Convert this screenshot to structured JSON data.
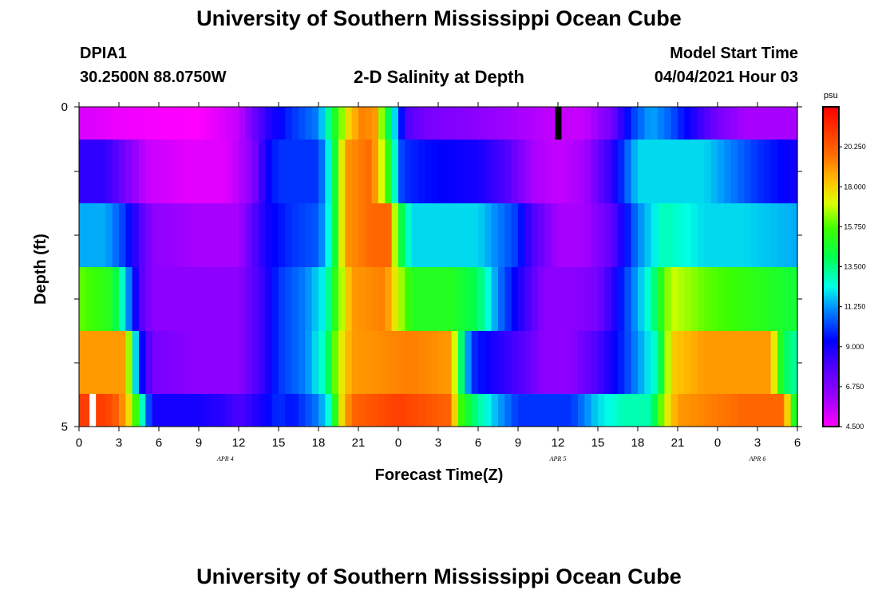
{
  "title_top": "University of Southern Mississippi Ocean Cube",
  "title_bottom": "University of Southern Mississippi Ocean Cube",
  "station": "DPIA1",
  "coords": "30.2500N  88.0750W",
  "chart_title": "2-D Salinity at Depth",
  "model_label": "Model Start Time",
  "model_time": "04/04/2021 Hour 03",
  "chart_data": {
    "type": "heatmap",
    "title": "2-D Salinity at Depth",
    "xlabel": "Forecast Time(Z)",
    "ylabel": "Depth (ft)",
    "x_ticks": [
      "0",
      "3",
      "6",
      "9",
      "12",
      "15",
      "18",
      "21",
      "0",
      "3",
      "6",
      "9",
      "12",
      "15",
      "18",
      "21",
      "0",
      "3",
      "6"
    ],
    "x_range_hours": [
      0,
      54
    ],
    "y_ticks": [
      "0",
      "5"
    ],
    "y_range": [
      0,
      5
    ],
    "date_labels": [
      {
        "text": "APR 4",
        "hour": 11
      },
      {
        "text": "APR 5",
        "hour": 36
      },
      {
        "text": "APR 6",
        "hour": 51
      }
    ],
    "colorbar": {
      "unit": "psu",
      "ticks": [
        "4.500",
        "6.750",
        "9.000",
        "11.250",
        "13.500",
        "15.750",
        "18.000",
        "20.250"
      ],
      "range": [
        4.5,
        22.5
      ]
    },
    "series": [
      {
        "depth_band": "0-0.5",
        "keyframes": [
          [
            0,
            5.2
          ],
          [
            3,
            4.8
          ],
          [
            6,
            4.6
          ],
          [
            9,
            4.5
          ],
          [
            12,
            5.5
          ],
          [
            14,
            8.5
          ],
          [
            16,
            10
          ],
          [
            18,
            11
          ],
          [
            19.3,
            15
          ],
          [
            20.3,
            18
          ],
          [
            21.3,
            19.5
          ],
          [
            22.3,
            19
          ],
          [
            23,
            15
          ],
          [
            24,
            11
          ],
          [
            24.5,
            8
          ],
          [
            26,
            7
          ],
          [
            30,
            6.5
          ],
          [
            33,
            6
          ],
          [
            36,
            5.5
          ],
          [
            38,
            5.5
          ],
          [
            40,
            7
          ],
          [
            41.5,
            10
          ],
          [
            43,
            11.5
          ],
          [
            44.5,
            10.5
          ],
          [
            46,
            9
          ],
          [
            48,
            7
          ],
          [
            50,
            6
          ],
          [
            54,
            6
          ]
        ]
      },
      {
        "depth_band": "0.5-1.5",
        "keyframes": [
          [
            0,
            8.5
          ],
          [
            2,
            8.5
          ],
          [
            4,
            6.5
          ],
          [
            5,
            5.5
          ],
          [
            8,
            5
          ],
          [
            11,
            5
          ],
          [
            13,
            6.5
          ],
          [
            14,
            9
          ],
          [
            15,
            10
          ],
          [
            18,
            10
          ],
          [
            19,
            13
          ],
          [
            20,
            19
          ],
          [
            22,
            20
          ],
          [
            23.3,
            15
          ],
          [
            24.3,
            10
          ],
          [
            26,
            9.5
          ],
          [
            30,
            9
          ],
          [
            32,
            8
          ],
          [
            34,
            6
          ],
          [
            36,
            5.5
          ],
          [
            38,
            6
          ],
          [
            40,
            8.5
          ],
          [
            42,
            12
          ],
          [
            45,
            12
          ],
          [
            47,
            12
          ],
          [
            49,
            11
          ],
          [
            51,
            10
          ],
          [
            54,
            9
          ]
        ]
      },
      {
        "depth_band": "1.5-2.5",
        "keyframes": [
          [
            0,
            11.5
          ],
          [
            2,
            11.5
          ],
          [
            3.5,
            10
          ],
          [
            4.5,
            8
          ],
          [
            5.5,
            6.5
          ],
          [
            9,
            6
          ],
          [
            12,
            6
          ],
          [
            14,
            9
          ],
          [
            16,
            10
          ],
          [
            18,
            10.5
          ],
          [
            19,
            13
          ],
          [
            20,
            19
          ],
          [
            22,
            20
          ],
          [
            23.3,
            20
          ],
          [
            24,
            15
          ],
          [
            25,
            12
          ],
          [
            30,
            12
          ],
          [
            33,
            10
          ],
          [
            34,
            8
          ],
          [
            36,
            6
          ],
          [
            38,
            6
          ],
          [
            40,
            7.5
          ],
          [
            42,
            11
          ],
          [
            44,
            13
          ],
          [
            47,
            12
          ],
          [
            50,
            12
          ],
          [
            54,
            11.5
          ]
        ]
      },
      {
        "depth_band": "2.5-3.5",
        "keyframes": [
          [
            0,
            16
          ],
          [
            2.5,
            15
          ],
          [
            3.5,
            12
          ],
          [
            4.5,
            8
          ],
          [
            5.5,
            6.5
          ],
          [
            9,
            6.5
          ],
          [
            12,
            6.5
          ],
          [
            13.5,
            8
          ],
          [
            15,
            10
          ],
          [
            17,
            11
          ],
          [
            18.5,
            12.5
          ],
          [
            19.5,
            16
          ],
          [
            20.5,
            19
          ],
          [
            23,
            19.5
          ],
          [
            24,
            17
          ],
          [
            25,
            15
          ],
          [
            28,
            15
          ],
          [
            30,
            14
          ],
          [
            31.5,
            11
          ],
          [
            33,
            9
          ],
          [
            35,
            6.5
          ],
          [
            37,
            6.5
          ],
          [
            39,
            7
          ],
          [
            41,
            10
          ],
          [
            43,
            13
          ],
          [
            44.5,
            17
          ],
          [
            47,
            16
          ],
          [
            54,
            14.5
          ]
        ]
      },
      {
        "depth_band": "3.5-4.5",
        "keyframes": [
          [
            0,
            19
          ],
          [
            3.5,
            19
          ],
          [
            4,
            14
          ],
          [
            4.5,
            10
          ],
          [
            5.5,
            7
          ],
          [
            9,
            6.5
          ],
          [
            12,
            6.5
          ],
          [
            13.5,
            8
          ],
          [
            15,
            10
          ],
          [
            17,
            11
          ],
          [
            18.5,
            13
          ],
          [
            19.5,
            17
          ],
          [
            20.5,
            19
          ],
          [
            25,
            19.5
          ],
          [
            28,
            19
          ],
          [
            28.5,
            15
          ],
          [
            29.5,
            10
          ],
          [
            31,
            9
          ],
          [
            33,
            8
          ],
          [
            35,
            6.5
          ],
          [
            37,
            6.5
          ],
          [
            39,
            8
          ],
          [
            41,
            10
          ],
          [
            43.5,
            13
          ],
          [
            44.5,
            18
          ],
          [
            47,
            19
          ],
          [
            52,
            19
          ],
          [
            52.5,
            16
          ],
          [
            53,
            14
          ],
          [
            54,
            13
          ]
        ]
      },
      {
        "depth_band": "4.5-5",
        "keyframes": [
          [
            0,
            21
          ],
          [
            2,
            21
          ],
          [
            3,
            20
          ],
          [
            4,
            17
          ],
          [
            4.5,
            14
          ],
          [
            5.5,
            9
          ],
          [
            7,
            9
          ],
          [
            9,
            9
          ],
          [
            11,
            8.5
          ],
          [
            12,
            8
          ],
          [
            13,
            8.5
          ],
          [
            15,
            10
          ],
          [
            16,
            9.5
          ],
          [
            18,
            11
          ],
          [
            19,
            13
          ],
          [
            19.5,
            17
          ],
          [
            20.5,
            20
          ],
          [
            24,
            21
          ],
          [
            28,
            20
          ],
          [
            28.5,
            16
          ],
          [
            29.5,
            14
          ],
          [
            31,
            12
          ],
          [
            33,
            10
          ],
          [
            35,
            10
          ],
          [
            37,
            10
          ],
          [
            39,
            12
          ],
          [
            41,
            13
          ],
          [
            43,
            13
          ],
          [
            44,
            17
          ],
          [
            45,
            19
          ],
          [
            50,
            20
          ],
          [
            53,
            20
          ],
          [
            53.5,
            16
          ],
          [
            54,
            14
          ]
        ]
      }
    ],
    "markers": [
      {
        "color": "#000000",
        "hour": 36,
        "depth_band": "0-0.5"
      },
      {
        "color": "#ffffff",
        "hour": 1,
        "depth_band": "4.5-5"
      }
    ]
  }
}
